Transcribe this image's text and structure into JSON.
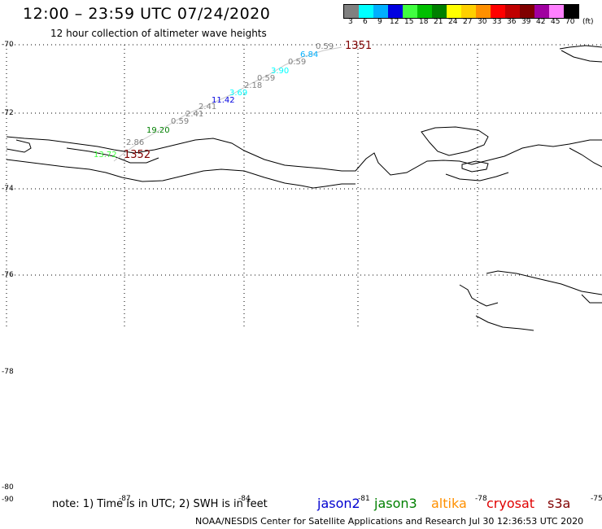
{
  "header": {
    "title": "12:00 – 23:59 UTC 07/24/2020",
    "subtitle": "12 hour collection of altimeter wave heights"
  },
  "legend": {
    "unit": "(ft)",
    "bins": [
      {
        "label": "3",
        "color": "#808080"
      },
      {
        "label": "6",
        "color": "#00ffff"
      },
      {
        "label": "9",
        "color": "#00b0ff"
      },
      {
        "label": "12",
        "color": "#0000e0"
      },
      {
        "label": "15",
        "color": "#40ff40"
      },
      {
        "label": "18",
        "color": "#00c000"
      },
      {
        "label": "21",
        "color": "#008000"
      },
      {
        "label": "24",
        "color": "#ffff00"
      },
      {
        "label": "27",
        "color": "#ffd000"
      },
      {
        "label": "30",
        "color": "#ff9000"
      },
      {
        "label": "33",
        "color": "#ff0000"
      },
      {
        "label": "36",
        "color": "#c00000"
      },
      {
        "label": "39",
        "color": "#800000"
      },
      {
        "label": "42",
        "color": "#a000a0"
      },
      {
        "label": "45",
        "color": "#ff80ff"
      },
      {
        "label": "70",
        "color": "#000000"
      }
    ]
  },
  "axes": {
    "lat_labels": [
      "-70",
      "-72",
      "-74",
      "-76",
      "-78",
      "-80",
      "-90"
    ],
    "lon_labels": [
      "-87",
      "-84",
      "-81",
      "-78",
      "-75"
    ]
  },
  "track": {
    "time_labels": [
      {
        "text": "1351",
        "color": "#800000"
      },
      {
        "text": "1352",
        "color": "#800000"
      }
    ],
    "points": [
      {
        "text": "0.59",
        "color": "#808080"
      },
      {
        "text": "6.84",
        "color": "#00b0ff"
      },
      {
        "text": "0.59",
        "color": "#808080"
      },
      {
        "text": "3.90",
        "color": "#00ffff"
      },
      {
        "text": "0.59",
        "color": "#808080"
      },
      {
        "text": "2.18",
        "color": "#808080"
      },
      {
        "text": "3.69",
        "color": "#00ffff"
      },
      {
        "text": "11.42",
        "color": "#0000e0"
      },
      {
        "text": "2.41",
        "color": "#808080"
      },
      {
        "text": "2.41",
        "color": "#808080"
      },
      {
        "text": "0.59",
        "color": "#808080"
      },
      {
        "text": "19.20",
        "color": "#008000"
      },
      {
        "text": "2.86",
        "color": "#808080"
      },
      {
        "text": "13.72",
        "color": "#40ff40"
      }
    ]
  },
  "footer": {
    "note": "note: 1) Time is in UTC; 2) SWH is in feet",
    "credit": "NOAA/NESDIS Center for Satellite Applications and Research    Jul 30 12:36:53 UTC 2020",
    "missions": [
      {
        "name": "jason2",
        "color": "#0000d0"
      },
      {
        "name": "jason3",
        "color": "#008000"
      },
      {
        "name": "altika",
        "color": "#ff9000"
      },
      {
        "name": "cryosat",
        "color": "#e00000"
      },
      {
        "name": "s3a",
        "color": "#800000"
      }
    ]
  }
}
